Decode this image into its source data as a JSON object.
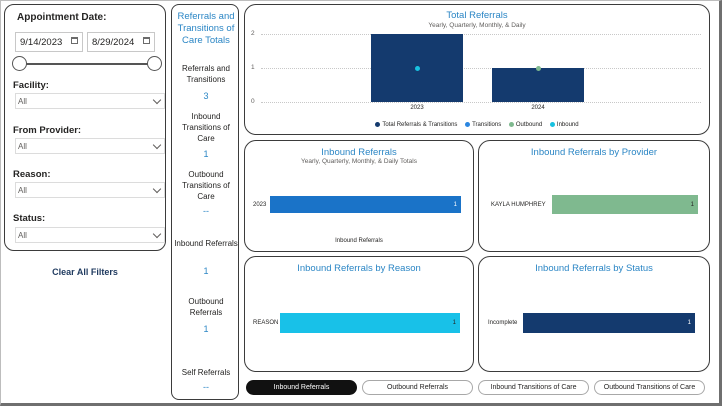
{
  "filters": {
    "appointment_date_label": "Appointment Date:",
    "start_date": "9/14/2023",
    "end_date": "8/29/2024",
    "facility_label": "Facility:",
    "facility_value": "All",
    "from_provider_label": "From Provider:",
    "from_provider_value": "All",
    "reason_label": "Reason:",
    "reason_value": "All",
    "status_label": "Status:",
    "status_value": "All",
    "clear_label": "Clear All Filters"
  },
  "totals": {
    "title": "Referrals and Transitions of Care Totals",
    "items": [
      {
        "label": "Referrals and Transitions",
        "value": "3"
      },
      {
        "label": "Inbound Transitions of Care",
        "value": "1"
      },
      {
        "label": "Outbound Transitions of Care",
        "value": "--"
      },
      {
        "label": "Inbound Referrals",
        "value": "1"
      },
      {
        "label": "Outbound Referrals",
        "value": "1"
      },
      {
        "label": "Self Referrals",
        "value": "--"
      }
    ]
  },
  "total_referrals": {
    "title": "Total Referrals",
    "subtitle": "Yearly, Quarterly, Monthly, & Daily",
    "y_ticks": [
      "2",
      "1",
      "0"
    ],
    "legend": [
      {
        "label": "Total Referrals & Transitions",
        "color": "#143a6e"
      },
      {
        "label": "Transitions",
        "color": "#2b86e0"
      },
      {
        "label": "Outbound",
        "color": "#7fb98f"
      },
      {
        "label": "Inbound",
        "color": "#18c1e0"
      }
    ]
  },
  "inbound_referrals": {
    "title": "Inbound Referrals",
    "subtitle": "Yearly, Quarterly, Monthly, & Daily Totals",
    "xlabel": "Inbound Referrals"
  },
  "by_provider": {
    "title": "Inbound Referrals by Provider"
  },
  "by_reason": {
    "title": "Inbound Referrals by Reason"
  },
  "by_status": {
    "title": "Inbound Referrals by Status"
  },
  "tabs": [
    {
      "label": "Inbound Referrals",
      "active": true
    },
    {
      "label": "Outbound Referrals",
      "active": false
    },
    {
      "label": "Inbound Transitions of Care",
      "active": false
    },
    {
      "label": "Outbound Transitions of Care",
      "active": false
    }
  ],
  "chart_data": [
    {
      "type": "bar",
      "title": "Total Referrals",
      "subtitle": "Yearly, Quarterly, Monthly, & Daily",
      "categories": [
        "2023",
        "2024"
      ],
      "series": [
        {
          "name": "Total Referrals & Transitions",
          "values": [
            2,
            1
          ]
        },
        {
          "name": "Transitions",
          "values": [
            null,
            null
          ]
        },
        {
          "name": "Outbound",
          "values": [
            null,
            1
          ]
        },
        {
          "name": "Inbound",
          "values": [
            1,
            null
          ]
        }
      ],
      "ylim": [
        0,
        2
      ],
      "grid": true,
      "legend": "bottom"
    },
    {
      "type": "bar",
      "orientation": "horizontal",
      "title": "Inbound Referrals",
      "categories": [
        "2023"
      ],
      "values": [
        1
      ],
      "xlabel": "Inbound Referrals",
      "color": "#1a73c8"
    },
    {
      "type": "bar",
      "orientation": "horizontal",
      "title": "Inbound Referrals by Provider",
      "categories": [
        "KAYLA HUMPHREY"
      ],
      "values": [
        1
      ],
      "color": "#7fb98f"
    },
    {
      "type": "bar",
      "orientation": "horizontal",
      "title": "Inbound Referrals by Reason",
      "categories": [
        "REASON"
      ],
      "values": [
        1
      ],
      "color": "#18c1e8"
    },
    {
      "type": "bar",
      "orientation": "horizontal",
      "title": "Inbound Referrals by Status",
      "categories": [
        "Incomplete"
      ],
      "values": [
        1
      ],
      "color": "#143a6e"
    }
  ]
}
